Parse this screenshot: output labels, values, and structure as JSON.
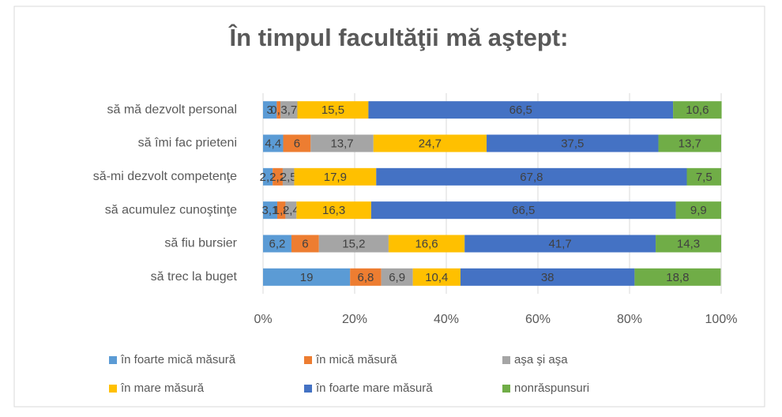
{
  "chart_data": {
    "type": "stacked_bar_horizontal",
    "title": "În timpul facultăţii mă aştept:",
    "categories": [
      "să mă dezvolt personal",
      "să îmi fac prieteni",
      "să-mi dezvolt competenţe",
      "să acumulez cunoştinţe",
      "să fiu bursier",
      "să trec la buget"
    ],
    "series": [
      {
        "name": "în foarte mică măsură",
        "color": "#5b9bd5",
        "values": [
          3,
          4.4,
          2.1,
          3.1,
          6.2,
          19
        ],
        "value_labels": [
          "3",
          "4,4",
          "2,1",
          "3,1",
          "6,2",
          "19"
        ]
      },
      {
        "name": "în mică măsură",
        "color": "#ed7d31",
        "values": [
          0.8,
          6,
          2.2,
          1.8,
          6,
          6.8
        ],
        "value_labels": [
          "0,8",
          "6",
          "2,2",
          "1,8",
          "6",
          "6,8"
        ]
      },
      {
        "name": "aşa şi aşa",
        "color": "#a5a5a5",
        "values": [
          3.7,
          13.7,
          2.5,
          2.4,
          15.2,
          6.9
        ],
        "value_labels": [
          "3,7",
          "13,7",
          "2,5",
          "2,4",
          "15,2",
          "6,9"
        ]
      },
      {
        "name": "în mare măsură",
        "color": "#ffc000",
        "values": [
          15.5,
          24.7,
          17.9,
          16.3,
          16.6,
          10.4
        ],
        "value_labels": [
          "15,5",
          "24,7",
          "17,9",
          "16,3",
          "16,6",
          "10,4"
        ]
      },
      {
        "name": "în foarte mare măsură",
        "color": "#4472c4",
        "values": [
          66.5,
          37.5,
          67.8,
          66.5,
          41.7,
          38
        ],
        "value_labels": [
          "66,5",
          "37,5",
          "67,8",
          "66,5",
          "41,7",
          "38"
        ]
      },
      {
        "name": "nonrăspunsuri",
        "color": "#70ad47",
        "values": [
          10.6,
          13.7,
          7.5,
          9.9,
          14.3,
          18.8
        ],
        "value_labels": [
          "10,6",
          "13,7",
          "7,5",
          "9,9",
          "14,3",
          "18,8"
        ]
      }
    ],
    "xlim": [
      0,
      100
    ],
    "xticks": [
      {
        "value": 0,
        "label": "0%"
      },
      {
        "value": 20,
        "label": "20%"
      },
      {
        "value": 40,
        "label": "40%"
      },
      {
        "value": 60,
        "label": "60%"
      },
      {
        "value": 80,
        "label": "80%"
      },
      {
        "value": 100,
        "label": "100%"
      }
    ]
  }
}
